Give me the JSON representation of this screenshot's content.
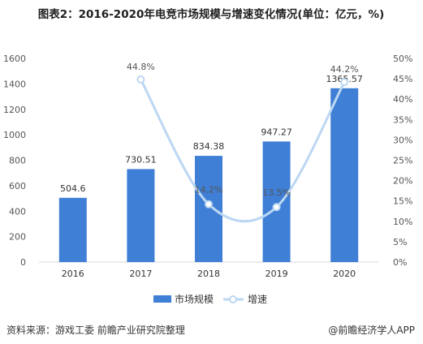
{
  "title": "图表2：2016-2020年电竞市场规模与增速变化情况(单位：亿元，%)",
  "source": "资料来源：游戏工委 前瞻产业研究院整理",
  "credit": "@前瞻经济学人APP",
  "colors": {
    "bar": "#3f7fd6",
    "line": "#bcd7f2",
    "point": "#bcd7f2"
  },
  "chart_data": {
    "type": "bar",
    "categories": [
      "2016",
      "2017",
      "2018",
      "2019",
      "2020"
    ],
    "series": [
      {
        "name": "市场规模",
        "type": "bar",
        "values": [
          504.6,
          730.51,
          834.38,
          947.27,
          1365.57
        ],
        "labels": [
          "504.6",
          "730.51",
          "834.38",
          "947.27",
          "1365.57"
        ]
      },
      {
        "name": "增速",
        "type": "line",
        "axis": "right",
        "values": [
          null,
          44.8,
          14.2,
          13.5,
          44.2
        ],
        "labels": [
          "",
          "44.8%",
          "14.2%",
          "13.5%",
          "44.2%"
        ]
      }
    ],
    "ylim": [
      0,
      1600
    ],
    "yticks": [
      "0",
      "200",
      "400",
      "600",
      "800",
      "1000",
      "1200",
      "1400",
      "1600"
    ],
    "y2lim": [
      0,
      50
    ],
    "y2ticks": [
      "0%",
      "5%",
      "10%",
      "15%",
      "20%",
      "25%",
      "30%",
      "35%",
      "40%",
      "45%",
      "50%"
    ],
    "legend_position": "bottom",
    "grid": false
  }
}
